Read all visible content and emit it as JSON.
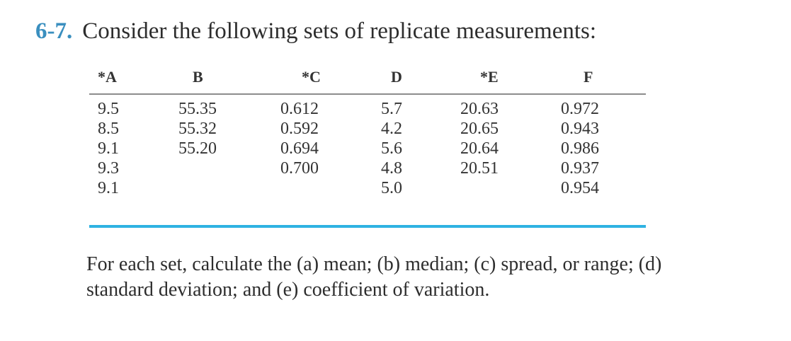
{
  "problem": {
    "number": "6-7.",
    "statement": "Consider the following sets of replicate measurements:"
  },
  "table": {
    "headers": [
      "*A",
      "B",
      "*C",
      "D",
      "*E",
      "F"
    ],
    "columns": [
      [
        "9.5",
        "8.5",
        "9.1",
        "9.3",
        "9.1"
      ],
      [
        "55.35",
        "55.32",
        "55.20",
        "",
        ""
      ],
      [
        "0.612",
        "0.592",
        "0.694",
        "0.700",
        ""
      ],
      [
        "5.7",
        "4.2",
        "5.6",
        "4.8",
        "5.0"
      ],
      [
        "20.63",
        "20.65",
        "20.64",
        "20.51",
        ""
      ],
      [
        "0.972",
        "0.943",
        "0.986",
        "0.937",
        "0.954"
      ]
    ],
    "rule_color": "#2fb2e2"
  },
  "question": {
    "text": "For each set, calculate the (a) mean; (b) median; (c) spread, or range; (d) standard deviation; and (e) coefficient of variation."
  }
}
